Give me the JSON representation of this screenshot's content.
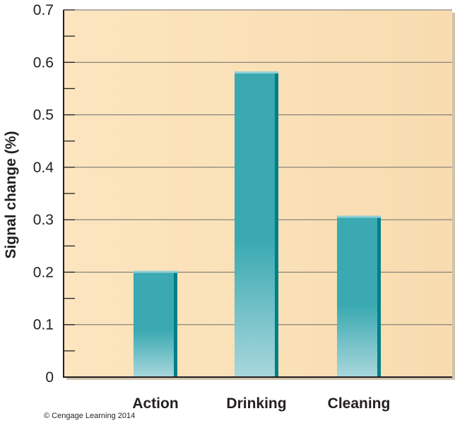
{
  "chart_data": {
    "type": "bar",
    "categories": [
      "Action",
      "Drinking",
      "Cleaning"
    ],
    "values": [
      0.2,
      0.58,
      0.305
    ],
    "title": "",
    "xlabel": "",
    "ylabel": "Signal change (%)",
    "ylim": [
      0,
      0.7
    ],
    "yticks": [
      {
        "value": 0,
        "label": "0"
      },
      {
        "value": 0.1,
        "label": "0.1"
      },
      {
        "value": 0.2,
        "label": "0.2"
      },
      {
        "value": 0.3,
        "label": "0.3"
      },
      {
        "value": 0.4,
        "label": "0.4"
      },
      {
        "value": 0.5,
        "label": "0.5"
      },
      {
        "value": 0.6,
        "label": "0.6"
      },
      {
        "value": 0.7,
        "label": "0.7"
      }
    ],
    "minor_tick_step": 0.05,
    "grid": true,
    "colors": {
      "plot_background": "#fce5bf",
      "bar_light": "#a8d7dc",
      "bar_dark": "#3aa9b1",
      "bar_side": "#007f86",
      "gridline": "#6d6d6d",
      "axis": "#231f20"
    }
  },
  "credit": "© Cengage Learning 2014"
}
